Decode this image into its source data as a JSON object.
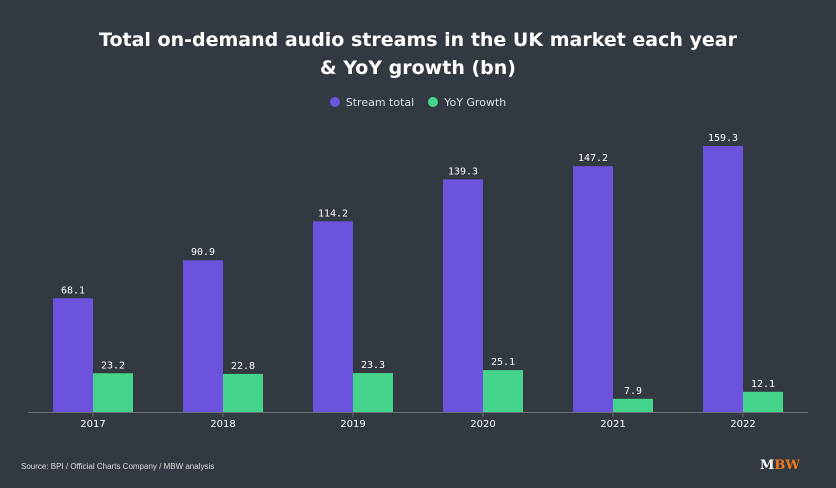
{
  "chart_data": {
    "type": "bar",
    "title": "Total on-demand audio streams in the UK market each year",
    "subtitle": "& YoY growth (bn)",
    "categories": [
      "2017",
      "2018",
      "2019",
      "2020",
      "2021",
      "2022"
    ],
    "series": [
      {
        "name": "Stream total",
        "color": "#6c52dc",
        "values": [
          68.1,
          90.9,
          114.2,
          139.3,
          147.2,
          159.3
        ]
      },
      {
        "name": "YoY Growth",
        "color": "#45d48c",
        "values": [
          23.2,
          22.8,
          23.3,
          25.1,
          7.9,
          12.1
        ]
      }
    ],
    "ylim": [
      0,
      160
    ],
    "legend": "top-center",
    "grid": false
  },
  "source": "Source: BPI / Official Charts Company / MBW analysis",
  "logo": {
    "part1": "M",
    "part2": "BW"
  }
}
